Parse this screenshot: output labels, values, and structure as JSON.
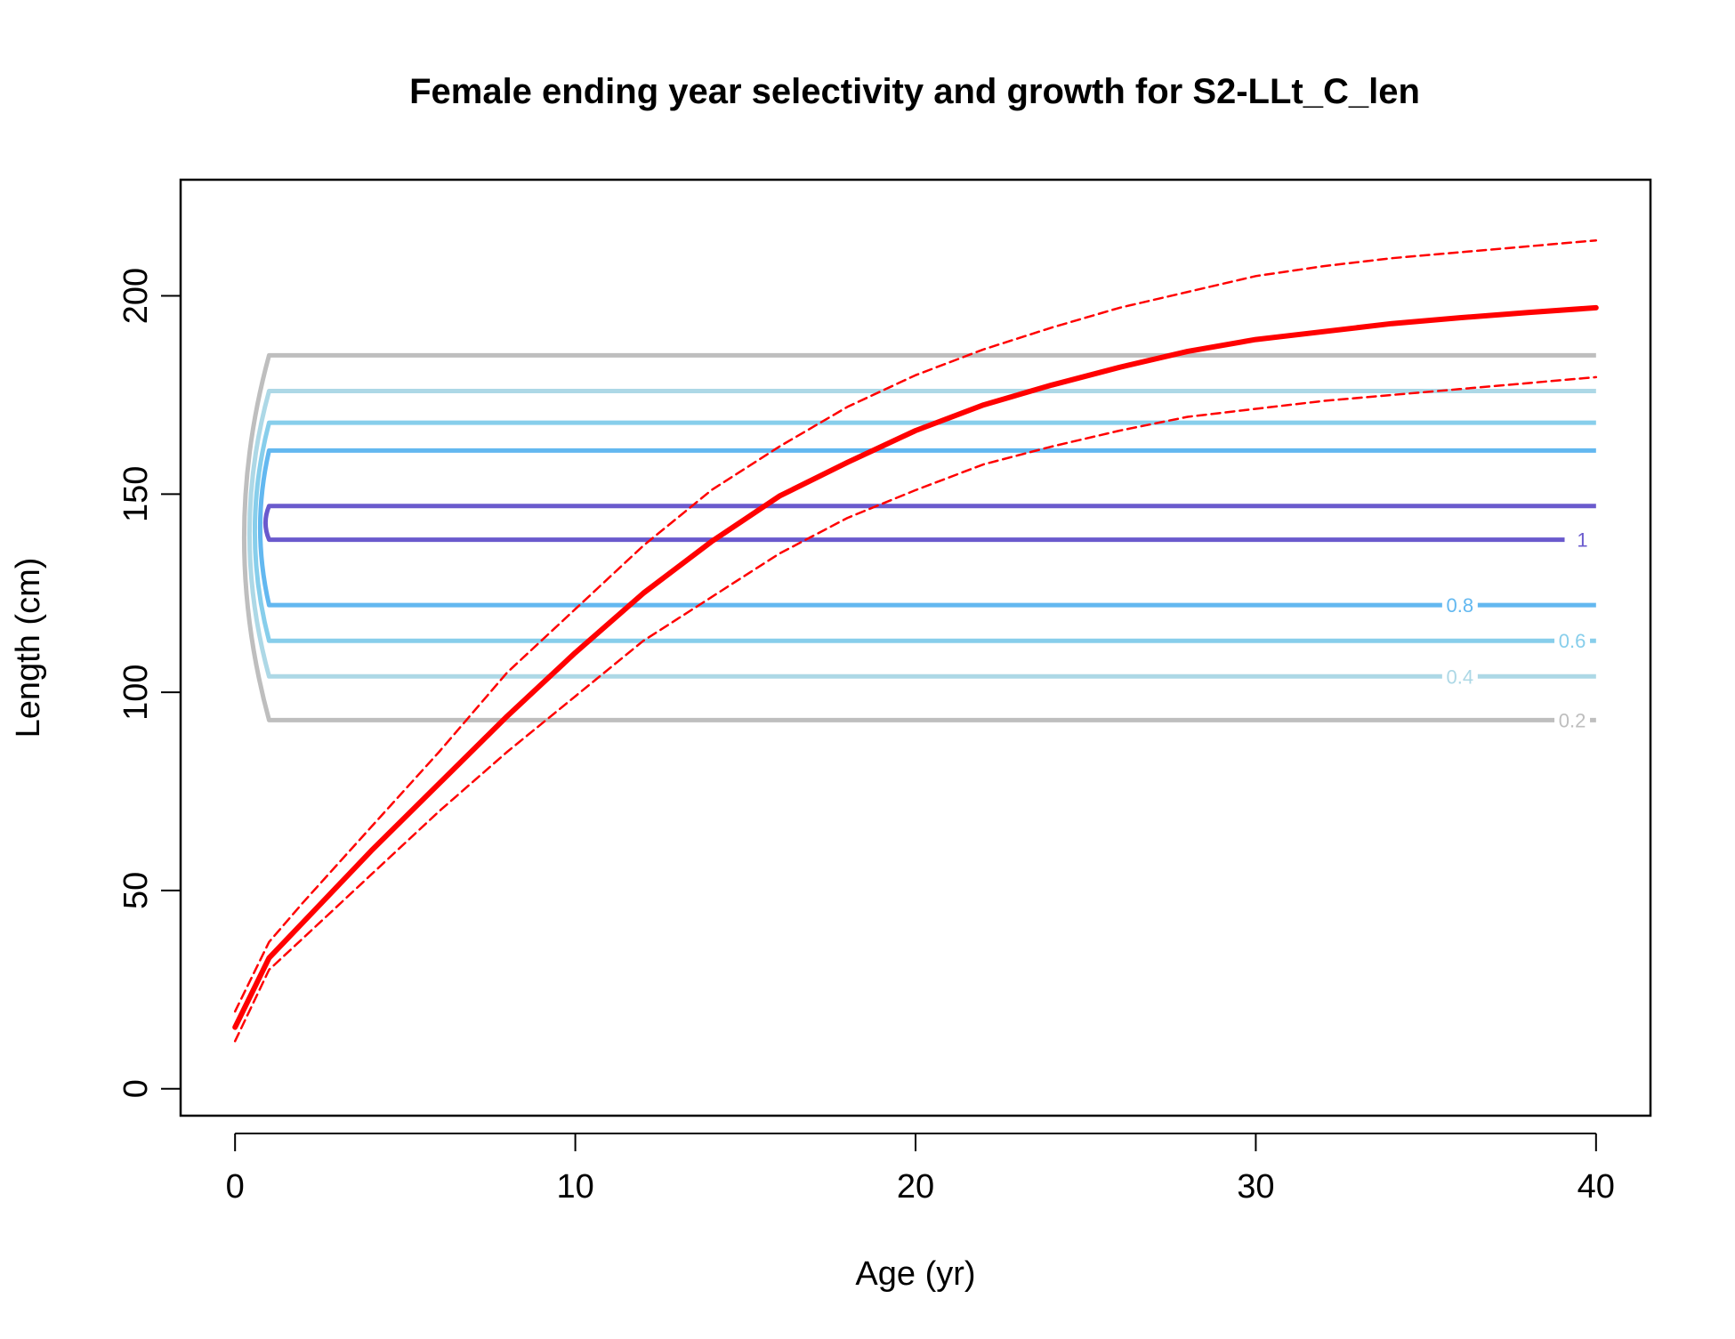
{
  "chart_data": {
    "type": "line",
    "title": "Female ending year selectivity and growth for S2-LLt_C_len",
    "xlabel": "Age (yr)",
    "ylabel": "Length (cm)",
    "xlim": [
      -1.6,
      41.6
    ],
    "ylim": [
      -6.8,
      229.3
    ],
    "x_ticks": [
      0,
      10,
      20,
      30,
      40
    ],
    "y_ticks": [
      0,
      50,
      100,
      150,
      200
    ],
    "grid": false,
    "legend": "none",
    "series": [
      {
        "style": "solid",
        "color": "#ff0000",
        "points": [
          [
            0,
            15.5
          ],
          [
            1,
            33
          ],
          [
            2,
            42
          ],
          [
            4,
            60
          ],
          [
            6,
            77
          ],
          [
            8,
            94
          ],
          [
            10,
            110
          ],
          [
            12,
            125
          ],
          [
            14,
            138
          ],
          [
            16,
            149.5
          ],
          [
            18,
            158
          ],
          [
            20,
            166
          ],
          [
            22,
            172.5
          ],
          [
            24,
            177.5
          ],
          [
            26,
            182
          ],
          [
            28,
            186
          ],
          [
            30,
            189
          ],
          [
            32,
            191
          ],
          [
            34,
            193
          ],
          [
            36,
            194.5
          ],
          [
            38,
            195.8
          ],
          [
            40,
            197
          ]
        ]
      },
      {
        "style": "dashed",
        "color": "#ff0000",
        "points": [
          [
            0,
            19.5
          ],
          [
            1,
            37
          ],
          [
            2,
            47
          ],
          [
            4,
            66
          ],
          [
            6,
            85
          ],
          [
            8,
            105
          ],
          [
            10,
            121
          ],
          [
            12,
            137
          ],
          [
            14,
            151
          ],
          [
            16,
            162
          ],
          [
            18,
            172
          ],
          [
            20,
            180
          ],
          [
            22,
            186.5
          ],
          [
            24,
            192
          ],
          [
            26,
            197
          ],
          [
            28,
            201
          ],
          [
            30,
            205
          ],
          [
            32,
            207.5
          ],
          [
            34,
            209.5
          ],
          [
            36,
            211
          ],
          [
            38,
            212.5
          ],
          [
            40,
            214
          ]
        ]
      },
      {
        "style": "dashed",
        "color": "#ff0000",
        "points": [
          [
            0,
            12
          ],
          [
            1,
            30
          ],
          [
            2,
            38
          ],
          [
            4,
            54
          ],
          [
            6,
            70
          ],
          [
            8,
            85
          ],
          [
            10,
            99
          ],
          [
            12,
            113
          ],
          [
            14,
            124
          ],
          [
            16,
            135
          ],
          [
            18,
            144
          ],
          [
            20,
            151
          ],
          [
            22,
            157.5
          ],
          [
            24,
            162
          ],
          [
            26,
            166
          ],
          [
            28,
            169.5
          ],
          [
            30,
            171.5
          ],
          [
            32,
            173.5
          ],
          [
            34,
            175
          ],
          [
            36,
            176.5
          ],
          [
            38,
            178
          ],
          [
            40,
            179.5
          ]
        ]
      }
    ],
    "contours": [
      {
        "level": "0.2",
        "color": "#bebebe",
        "lower": 93,
        "upper": 185,
        "x_start": 1,
        "label_x": 39.3
      },
      {
        "level": "0.4",
        "color": "#add8e6",
        "lower": 104,
        "upper": 176,
        "x_start": 1,
        "label_x": 36
      },
      {
        "level": "0.6",
        "color": "#87ceeb",
        "lower": 113,
        "upper": 168,
        "x_start": 1,
        "label_x": 39.3
      },
      {
        "level": "0.8",
        "color": "#63b8f0",
        "lower": 122,
        "upper": 161,
        "x_start": 1,
        "label_x": 36
      },
      {
        "level": "1",
        "color": "#6a5acd",
        "lower": 138.5,
        "upper": 147,
        "x_start": 1,
        "label_x": 39.6
      }
    ]
  }
}
